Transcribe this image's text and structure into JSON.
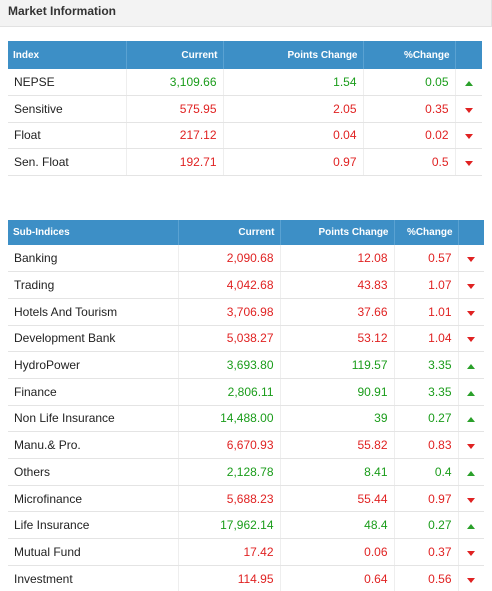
{
  "panel": {
    "title": "Market Information"
  },
  "index_table": {
    "headers": [
      "Index",
      "Current",
      "Points Change",
      "%Change"
    ],
    "rows": [
      {
        "name": "NEPSE",
        "current": "3,109.66",
        "points": "1.54",
        "pct": "0.05",
        "dir": "up"
      },
      {
        "name": "Sensitive",
        "current": "575.95",
        "points": "2.05",
        "pct": "0.35",
        "dir": "down"
      },
      {
        "name": "Float",
        "current": "217.12",
        "points": "0.04",
        "pct": "0.02",
        "dir": "down"
      },
      {
        "name": "Sen. Float",
        "current": "192.71",
        "points": "0.97",
        "pct": "0.5",
        "dir": "down"
      }
    ]
  },
  "sub_table": {
    "headers": [
      "Sub-Indices",
      "Current",
      "Points Change",
      "%Change"
    ],
    "rows": [
      {
        "name": "Banking",
        "current": "2,090.68",
        "points": "12.08",
        "pct": "0.57",
        "dir": "down"
      },
      {
        "name": "Trading",
        "current": "4,042.68",
        "points": "43.83",
        "pct": "1.07",
        "dir": "down"
      },
      {
        "name": "Hotels And Tourism",
        "current": "3,706.98",
        "points": "37.66",
        "pct": "1.01",
        "dir": "down"
      },
      {
        "name": "Development Bank",
        "current": "5,038.27",
        "points": "53.12",
        "pct": "1.04",
        "dir": "down"
      },
      {
        "name": "HydroPower",
        "current": "3,693.80",
        "points": "119.57",
        "pct": "3.35",
        "dir": "up"
      },
      {
        "name": "Finance",
        "current": "2,806.11",
        "points": "90.91",
        "pct": "3.35",
        "dir": "up"
      },
      {
        "name": "Non Life Insurance",
        "current": "14,488.00",
        "points": "39",
        "pct": "0.27",
        "dir": "up"
      },
      {
        "name": "Manu.& Pro.",
        "current": "6,670.93",
        "points": "55.82",
        "pct": "0.83",
        "dir": "down"
      },
      {
        "name": "Others",
        "current": "2,128.78",
        "points": "8.41",
        "pct": "0.4",
        "dir": "up"
      },
      {
        "name": "Microfinance",
        "current": "5,688.23",
        "points": "55.44",
        "pct": "0.97",
        "dir": "down"
      },
      {
        "name": "Life Insurance",
        "current": "17,962.14",
        "points": "48.4",
        "pct": "0.27",
        "dir": "up"
      },
      {
        "name": "Mutual Fund",
        "current": "17.42",
        "points": "0.06",
        "pct": "0.37",
        "dir": "down"
      },
      {
        "name": "Investment",
        "current": "114.95",
        "points": "0.64",
        "pct": "0.56",
        "dir": "down"
      }
    ]
  },
  "colors": {
    "header_bg": "#3d8fc6",
    "up": "#1a9c1a",
    "down": "#e02222"
  },
  "icons": {
    "up": "triangle-up-icon",
    "down": "triangle-down-icon"
  }
}
